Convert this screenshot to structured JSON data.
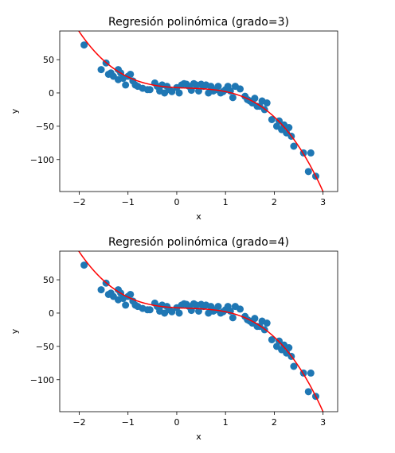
{
  "chart_data": [
    {
      "type": "scatter",
      "title": "Regresión polinómica (grado=3)",
      "xlabel": "x",
      "ylabel": "y",
      "xlim": [
        -2.4,
        3.3
      ],
      "ylim": [
        -148,
        93
      ],
      "xticks": [
        -2,
        -1,
        0,
        1,
        2,
        3
      ],
      "xtick_labels": [
        "−2",
        "−1",
        "0",
        "1",
        "2",
        "3"
      ],
      "yticks": [
        50,
        0,
        -50,
        -100
      ],
      "ytick_labels": [
        "50",
        "0",
        "−50",
        "−100"
      ],
      "grid": false,
      "legend": false,
      "colors": {
        "points": "#1f77b4",
        "fit": "#ff0000"
      },
      "series": [
        {
          "kind": "points",
          "x": [
            -1.9,
            -1.55,
            -1.45,
            -1.4,
            -1.35,
            -1.3,
            -1.2,
            -1.2,
            -1.15,
            -1.1,
            -1.05,
            -1.0,
            -0.95,
            -0.9,
            -0.85,
            -0.8,
            -0.7,
            -0.6,
            -0.55,
            -0.45,
            -0.4,
            -0.35,
            -0.3,
            -0.25,
            -0.2,
            -0.15,
            -0.1,
            0.0,
            0.05,
            0.1,
            0.15,
            0.2,
            0.25,
            0.3,
            0.35,
            0.4,
            0.45,
            0.5,
            0.55,
            0.6,
            0.65,
            0.7,
            0.75,
            0.8,
            0.85,
            0.9,
            0.95,
            1.0,
            1.05,
            1.1,
            1.15,
            1.2,
            1.3,
            1.4,
            1.45,
            1.5,
            1.55,
            1.6,
            1.65,
            1.7,
            1.75,
            1.8,
            1.85,
            1.95,
            2.05,
            2.1,
            2.15,
            2.2,
            2.25,
            2.3,
            2.35,
            2.4,
            2.6,
            2.7,
            2.75,
            2.85
          ],
          "y": [
            72,
            35,
            45,
            28,
            30,
            25,
            35,
            20,
            30,
            22,
            12,
            25,
            28,
            18,
            12,
            10,
            7,
            5,
            5,
            15,
            10,
            3,
            12,
            0,
            10,
            5,
            2,
            8,
            0,
            12,
            14,
            13,
            10,
            4,
            14,
            12,
            3,
            13,
            10,
            12,
            0,
            10,
            3,
            5,
            10,
            0,
            2,
            5,
            10,
            3,
            -7,
            10,
            6,
            -5,
            -10,
            -12,
            -15,
            -8,
            -20,
            -20,
            -12,
            -25,
            -15,
            -40,
            -50,
            -42,
            -55,
            -48,
            -60,
            -52,
            -65,
            -80,
            -90,
            -118,
            -90,
            -125
          ]
        },
        {
          "kind": "fit",
          "degree": 3,
          "coefficients": [
            8,
            -4,
            5,
            -7
          ]
        }
      ]
    },
    {
      "type": "scatter",
      "title": "Regresión polinómica (grado=4)",
      "xlabel": "x",
      "ylabel": "y",
      "xlim": [
        -2.4,
        3.3
      ],
      "ylim": [
        -148,
        93
      ],
      "xticks": [
        -2,
        -1,
        0,
        1,
        2,
        3
      ],
      "xtick_labels": [
        "−2",
        "−1",
        "0",
        "1",
        "2",
        "3"
      ],
      "yticks": [
        50,
        0,
        -50,
        -100
      ],
      "ytick_labels": [
        "50",
        "0",
        "−50",
        "−100"
      ],
      "grid": false,
      "legend": false,
      "colors": {
        "points": "#1f77b4",
        "fit": "#ff0000"
      },
      "series": [
        {
          "kind": "points",
          "x": [
            -1.9,
            -1.55,
            -1.45,
            -1.4,
            -1.35,
            -1.3,
            -1.2,
            -1.2,
            -1.15,
            -1.1,
            -1.05,
            -1.0,
            -0.95,
            -0.9,
            -0.85,
            -0.8,
            -0.7,
            -0.6,
            -0.55,
            -0.45,
            -0.4,
            -0.35,
            -0.3,
            -0.25,
            -0.2,
            -0.15,
            -0.1,
            0.0,
            0.05,
            0.1,
            0.15,
            0.2,
            0.25,
            0.3,
            0.35,
            0.4,
            0.45,
            0.5,
            0.55,
            0.6,
            0.65,
            0.7,
            0.75,
            0.8,
            0.85,
            0.9,
            0.95,
            1.0,
            1.05,
            1.1,
            1.15,
            1.2,
            1.3,
            1.4,
            1.45,
            1.5,
            1.55,
            1.6,
            1.65,
            1.7,
            1.75,
            1.8,
            1.85,
            1.95,
            2.05,
            2.1,
            2.15,
            2.2,
            2.25,
            2.3,
            2.35,
            2.4,
            2.6,
            2.7,
            2.75,
            2.85
          ],
          "y": [
            72,
            35,
            45,
            28,
            30,
            25,
            35,
            20,
            30,
            22,
            12,
            25,
            28,
            18,
            12,
            10,
            7,
            5,
            5,
            15,
            10,
            3,
            12,
            0,
            10,
            5,
            2,
            8,
            0,
            12,
            14,
            13,
            10,
            4,
            14,
            12,
            3,
            13,
            10,
            12,
            0,
            10,
            3,
            5,
            10,
            0,
            2,
            5,
            10,
            3,
            -7,
            10,
            6,
            -5,
            -10,
            -12,
            -15,
            -8,
            -20,
            -20,
            -12,
            -25,
            -15,
            -40,
            -50,
            -42,
            -55,
            -48,
            -60,
            -52,
            -65,
            -80,
            -90,
            -118,
            -90,
            -125
          ]
        },
        {
          "kind": "fit",
          "degree": 4,
          "coefficients": [
            8,
            -4,
            5,
            -7,
            0
          ]
        }
      ]
    }
  ]
}
